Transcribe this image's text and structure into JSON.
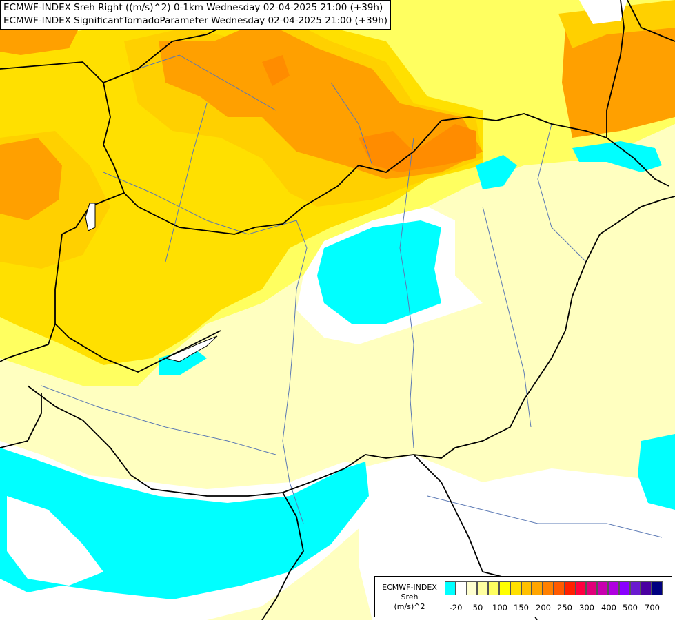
{
  "header": {
    "line1": "ECMWF-INDEX Sreh Right ((m/s)^2) 0-1km Wednesday 02-04-2025 21:00 (+39h)",
    "line2": "ECMWF-INDEX SignificantTornadoParameter Wednesday 02-04-2025 21:00 (+39h)"
  },
  "legend": {
    "line1": "ECMWF-INDEX",
    "line2": "Sreh",
    "line3": "(m/s)^2",
    "colors": [
      "#00ffff",
      "#ffffff",
      "#ffffd0",
      "#ffffa0",
      "#ffff60",
      "#ffff00",
      "#ffe000",
      "#ffc000",
      "#ffa500",
      "#ff8000",
      "#ff5a00",
      "#ff2000",
      "#ff0040",
      "#e0007a",
      "#c800b0",
      "#b000e0",
      "#8a00ff",
      "#6a1ad0",
      "#4a00a0",
      "#000080"
    ],
    "ticks": [
      "-20",
      "50",
      "100",
      "150",
      "200",
      "250",
      "300",
      "400",
      "500",
      "700"
    ]
  },
  "colors": {
    "cyan": "#00ffff",
    "white": "#ffffff",
    "pale_yellow": "#ffffc0",
    "yellow": "#ffff00",
    "gold": "#ffd000",
    "orange": "#ffa000",
    "dark_orange": "#ff8000",
    "border": "#000000",
    "river": "#5a78b4"
  }
}
